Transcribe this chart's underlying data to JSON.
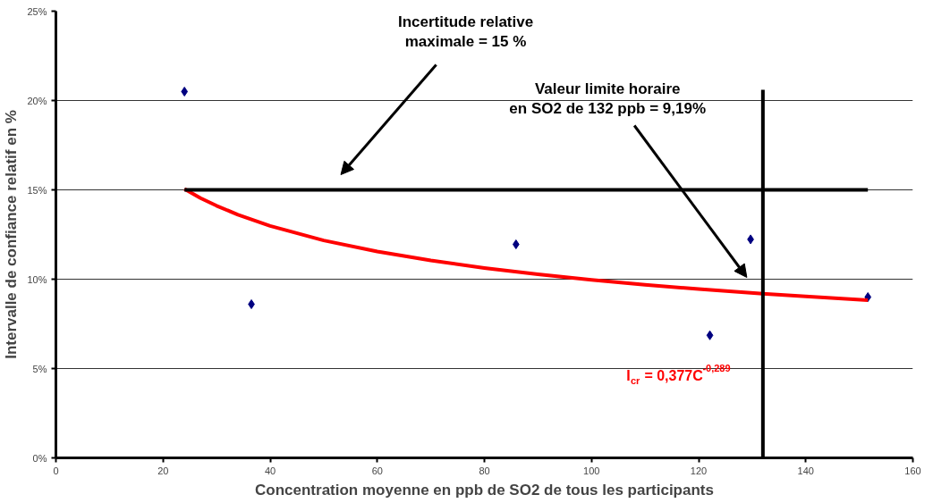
{
  "chart_data": {
    "type": "scatter",
    "xlabel": "Concentration moyenne en ppb de SO2 de tous les participants",
    "ylabel": "Intervalle de confiance relatif en %",
    "xlim": [
      0,
      160
    ],
    "xticks": [
      0,
      20,
      40,
      60,
      80,
      100,
      120,
      140,
      160
    ],
    "ylim": [
      0,
      25
    ],
    "yticks": [
      {
        "value": 0,
        "label": "0%"
      },
      {
        "value": 5,
        "label": "5%"
      },
      {
        "value": 10,
        "label": "10%"
      },
      {
        "value": 15,
        "label": "15%"
      },
      {
        "value": 20,
        "label": "20%"
      },
      {
        "value": 25,
        "label": "25%"
      }
    ],
    "grid": "y",
    "series": [
      {
        "marker": "diamond",
        "color": "#000080",
        "x": [
          24.0,
          36.5,
          85.9,
          122.1,
          129.7,
          151.6
        ],
        "values": [
          20.5,
          8.6,
          11.95,
          6.86,
          12.23,
          9.0
        ]
      },
      {
        "type": "line",
        "color": "#ff0000",
        "x": [
          24,
          27,
          30,
          34,
          40,
          50,
          60,
          70,
          80,
          90,
          100,
          110,
          120,
          132,
          140,
          151.6
        ],
        "values": [
          15.05,
          14.54,
          14.11,
          13.61,
          12.98,
          12.17,
          11.55,
          11.05,
          10.63,
          10.27,
          9.96,
          9.69,
          9.45,
          9.19,
          9.04,
          8.83
        ]
      },
      {
        "type": "line",
        "color": "#000000",
        "x": [
          24,
          151.6
        ],
        "values": [
          15,
          15
        ]
      },
      {
        "type": "line",
        "color": "#000000",
        "x": [
          132,
          132
        ],
        "values": [
          0,
          20.6
        ]
      }
    ],
    "annotations": [
      "Incertitude relative\nmaximale = 15 %",
      "Valeur limite horaire\nen SO2 de 132 ppb = 9,19%",
      "I$_{cr}$ = 0,377C$^{-0,289}$"
    ]
  }
}
